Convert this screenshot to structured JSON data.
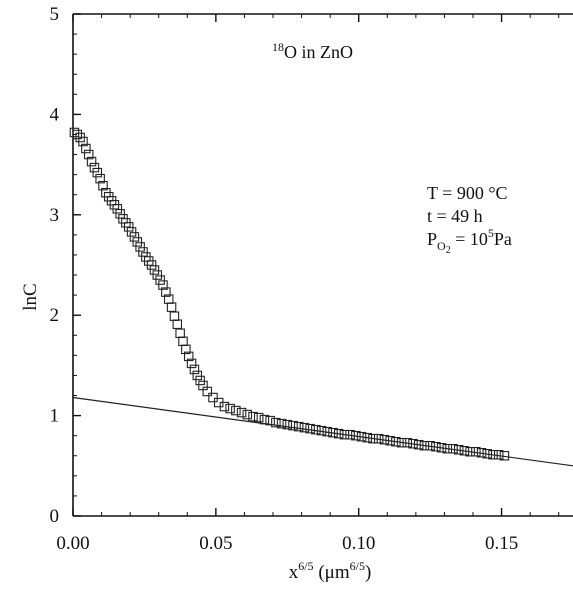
{
  "chart_data": {
    "type": "scatter",
    "title": "",
    "xlabel": "x^6/5 (μm^6/5)",
    "xlabel_parts": {
      "base": "x",
      "sup1": "6/5",
      "mid": " (μm",
      "sup2": "6/5",
      "end": ")"
    },
    "ylabel": "lnC",
    "xlim": [
      0.0,
      0.175
    ],
    "ylim": [
      0,
      5
    ],
    "xticks": [
      0.0,
      0.05,
      0.1,
      0.15
    ],
    "xtick_labels": [
      "0.00",
      "0.05",
      "0.10",
      "0.15"
    ],
    "yticks": [
      0,
      1,
      2,
      3,
      4,
      5
    ],
    "ytick_labels": [
      "0",
      "1",
      "2",
      "3",
      "4",
      "5"
    ],
    "grid": false,
    "annotations": {
      "sample": {
        "sup": "18",
        "text": "O in ZnO"
      },
      "temperature": "T = 900 °C",
      "time": "t = 49 h",
      "pressure": {
        "prefix": "P",
        "sub": "O",
        "subsub": "2",
        "mid": " = 10",
        "sup": "5",
        "unit": "Pa"
      }
    },
    "series": [
      {
        "marker": "open-square",
        "x": [
          0.0005,
          0.0015,
          0.0025,
          0.0035,
          0.0045,
          0.0055,
          0.0065,
          0.0075,
          0.0085,
          0.0095,
          0.0105,
          0.0115,
          0.0125,
          0.0135,
          0.0145,
          0.0155,
          0.0165,
          0.0175,
          0.0185,
          0.0195,
          0.0205,
          0.0215,
          0.0225,
          0.0235,
          0.0245,
          0.0255,
          0.0265,
          0.0275,
          0.0285,
          0.0295,
          0.0305,
          0.0315,
          0.0325,
          0.0335,
          0.0345,
          0.0355,
          0.0365,
          0.0375,
          0.0385,
          0.0395,
          0.0405,
          0.0415,
          0.0425,
          0.0435,
          0.0445,
          0.0455,
          0.047,
          0.049,
          0.051,
          0.053,
          0.055,
          0.057,
          0.059,
          0.061,
          0.063,
          0.065,
          0.067,
          0.069,
          0.071,
          0.073,
          0.075,
          0.077,
          0.079,
          0.081,
          0.083,
          0.085,
          0.087,
          0.089,
          0.091,
          0.093,
          0.095,
          0.097,
          0.099,
          0.101,
          0.103,
          0.105,
          0.107,
          0.109,
          0.111,
          0.113,
          0.115,
          0.117,
          0.119,
          0.121,
          0.123,
          0.125,
          0.127,
          0.129,
          0.131,
          0.133,
          0.135,
          0.137,
          0.139,
          0.141,
          0.143,
          0.145,
          0.147,
          0.149,
          0.151
        ],
        "y": [
          3.82,
          3.8,
          3.77,
          3.73,
          3.66,
          3.6,
          3.53,
          3.47,
          3.42,
          3.36,
          3.29,
          3.22,
          3.18,
          3.14,
          3.1,
          3.06,
          3.01,
          2.96,
          2.92,
          2.88,
          2.83,
          2.78,
          2.73,
          2.68,
          2.63,
          2.58,
          2.54,
          2.5,
          2.45,
          2.4,
          2.35,
          2.3,
          2.23,
          2.16,
          2.08,
          1.99,
          1.91,
          1.82,
          1.74,
          1.66,
          1.59,
          1.52,
          1.46,
          1.4,
          1.35,
          1.3,
          1.24,
          1.18,
          1.13,
          1.09,
          1.07,
          1.05,
          1.03,
          1.01,
          0.99,
          0.98,
          0.96,
          0.95,
          0.93,
          0.92,
          0.91,
          0.9,
          0.89,
          0.88,
          0.87,
          0.86,
          0.85,
          0.84,
          0.83,
          0.82,
          0.81,
          0.81,
          0.8,
          0.79,
          0.78,
          0.77,
          0.77,
          0.76,
          0.75,
          0.74,
          0.73,
          0.73,
          0.72,
          0.71,
          0.7,
          0.7,
          0.69,
          0.68,
          0.67,
          0.67,
          0.66,
          0.65,
          0.64,
          0.64,
          0.63,
          0.62,
          0.61,
          0.61,
          0.6
        ]
      }
    ],
    "fit_line": {
      "x": [
        0.0,
        0.175
      ],
      "y": [
        1.18,
        0.5
      ]
    }
  }
}
